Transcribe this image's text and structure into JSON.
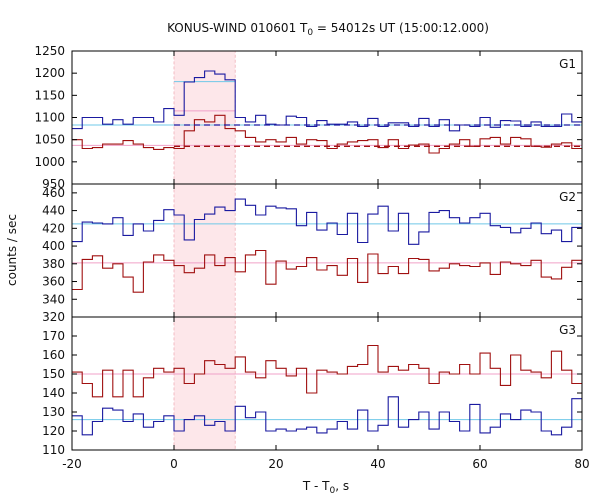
{
  "chart_data": {
    "type": "line",
    "title_parts": {
      "pre": "KONUS-WIND 010601 T",
      "sub": "0",
      "post": " = 54012s UT (15:00:12.000)"
    },
    "xlabel_parts": {
      "pre": "T - T",
      "sub": "0",
      "post": ", s"
    },
    "ylabel": "counts / sec",
    "xlim": [
      -20,
      80
    ],
    "xticks": [
      -20,
      0,
      20,
      40,
      60,
      80
    ],
    "highlight_interval": [
      0,
      12
    ],
    "colors": {
      "blue": "#1a1aa0",
      "red": "#a01010",
      "cyan": "#6fc8e8",
      "pink": "#f0a0c8",
      "highlight": "#fde7ea"
    },
    "panels": [
      {
        "label": "G1",
        "ylim": [
          950,
          1250
        ],
        "yticks": [
          950,
          1000,
          1050,
          1100,
          1150,
          1200,
          1250
        ],
        "step_start": -20,
        "step_width": 2,
        "series": [
          {
            "color": "blue",
            "values": [
              1075,
              1100,
              1100,
              1085,
              1095,
              1085,
              1100,
              1100,
              1090,
              1120,
              1105,
              1180,
              1190,
              1205,
              1198,
              1185,
              1100,
              1090,
              1105,
              1085,
              1083,
              1103,
              1100,
              1080,
              1093,
              1085,
              1085,
              1090,
              1080,
              1098,
              1080,
              1088,
              1088,
              1080,
              1098,
              1080,
              1095,
              1070,
              1083,
              1080,
              1100,
              1078,
              1093,
              1092,
              1080,
              1090,
              1080,
              1080,
              1108,
              1090
            ]
          },
          {
            "color": "red",
            "values": [
              1050,
              1030,
              1032,
              1040,
              1040,
              1048,
              1040,
              1032,
              1028,
              1032,
              1030,
              1070,
              1095,
              1090,
              1105,
              1075,
              1070,
              1055,
              1045,
              1050,
              1045,
              1055,
              1040,
              1050,
              1048,
              1030,
              1040,
              1045,
              1048,
              1050,
              1032,
              1050,
              1030,
              1038,
              1040,
              1020,
              1030,
              1040,
              1050,
              1035,
              1052,
              1055,
              1040,
              1055,
              1052,
              1035,
              1033,
              1040,
              1043,
              1030
            ]
          }
        ],
        "levels": [
          {
            "color": "cyan",
            "value": 1083,
            "from": -20,
            "to": 80
          },
          {
            "color": "pink",
            "value": 1037,
            "from": -20,
            "to": 80
          },
          {
            "color": "cyan",
            "value": 1181,
            "from": 0,
            "to": 12
          },
          {
            "color": "pink",
            "value": 1115,
            "from": 0,
            "to": 12
          }
        ],
        "dashed": [
          {
            "color": "blue",
            "value": 1083,
            "from": 0,
            "to": 80
          },
          {
            "color": "red",
            "value": 1035,
            "from": 0,
            "to": 80
          }
        ]
      },
      {
        "label": "G2",
        "ylim": [
          320,
          470
        ],
        "yticks": [
          320,
          340,
          360,
          380,
          400,
          420,
          440,
          460
        ],
        "step_start": -20,
        "step_width": 2,
        "series": [
          {
            "color": "blue",
            "values": [
              405,
              427,
              426,
              425,
              432,
              412,
              425,
              417,
              429,
              441,
              435,
              407,
              430,
              436,
              444,
              440,
              453,
              446,
              435,
              445,
              443,
              442,
              423,
              438,
              418,
              426,
              413,
              437,
              404,
              436,
              445,
              417,
              437,
              402,
              416,
              438,
              440,
              432,
              426,
              432,
              437,
              423,
              421,
              415,
              420,
              426,
              414,
              418,
              405,
              421
            ]
          },
          {
            "color": "red",
            "values": [
              351,
              385,
              389,
              375,
              380,
              365,
              348,
              382,
              390,
              384,
              378,
              370,
              375,
              390,
              378,
              387,
              371,
              390,
              395,
              357,
              383,
              374,
              377,
              387,
              373,
              378,
              367,
              386,
              359,
              391,
              369,
              377,
              369,
              386,
              385,
              372,
              375,
              380,
              378,
              377,
              381,
              368,
              382,
              380,
              378,
              384,
              365,
              363,
              376,
              384
            ]
          }
        ],
        "levels": [
          {
            "color": "cyan",
            "value": 425,
            "from": -20,
            "to": 80
          },
          {
            "color": "pink",
            "value": 381,
            "from": -20,
            "to": 80
          }
        ],
        "dashed": []
      },
      {
        "label": "G3",
        "ylim": [
          110,
          180
        ],
        "yticks": [
          110,
          120,
          130,
          140,
          150,
          160,
          170
        ],
        "step_start": -20,
        "step_width": 2,
        "series": [
          {
            "color": "blue",
            "values": [
              128,
              118,
              125,
              132,
              131,
              125,
              129,
              122,
              125,
              128,
              120,
              126,
              128,
              123,
              125,
              120,
              133,
              127,
              130,
              120,
              121,
              120,
              121,
              122,
              119,
              121,
              125,
              121,
              131,
              120,
              123,
              138,
              122,
              126,
              130,
              121,
              130,
              125,
              120,
              134,
              119,
              122,
              129,
              126,
              131,
              130,
              120,
              118,
              122,
              137
            ]
          },
          {
            "color": "red",
            "values": [
              151,
              145,
              138,
              152,
              138,
              152,
              138,
              148,
              153,
              151,
              153,
              145,
              150,
              157,
              155,
              153,
              159,
              151,
              148,
              157,
              153,
              149,
              153,
              140,
              152,
              151,
              150,
              154,
              155,
              165,
              151,
              154,
              152,
              155,
              153,
              145,
              151,
              150,
              155,
              150,
              161,
              153,
              144,
              160,
              152,
              151,
              148,
              162,
              152,
              145
            ]
          }
        ],
        "levels": [
          {
            "color": "cyan",
            "value": 126,
            "from": -20,
            "to": 80
          },
          {
            "color": "pink",
            "value": 150,
            "from": -20,
            "to": 80
          }
        ],
        "dashed": []
      }
    ]
  }
}
